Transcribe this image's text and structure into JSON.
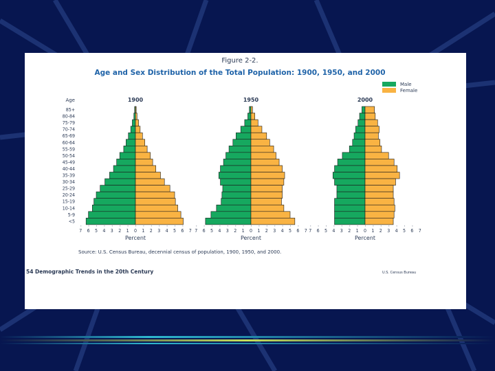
{
  "figure": {
    "number": "Figure 2-2.",
    "title": "Age and Sex Distribution of the Total Population:  1900, 1950, and 2000",
    "source": "Source:  U.S. Census Bureau, decennial census of population, 1900, 1950, and 2000.",
    "footer_left": "54  Demographic Trends in the 20th Century",
    "footer_right": "U.S. Census Bureau"
  },
  "colors": {
    "background": "#071650",
    "male": "#16a85f",
    "female": "#f9b343",
    "title": "#1f63a8",
    "text": "#2b3a55",
    "bar_bottom_top": "#2fb8cf",
    "bar_bottom_mid": "#c6e05a"
  },
  "chart_data": {
    "type": "bar",
    "subtype": "population-pyramid",
    "age_axis_label": "Age",
    "age_groups": [
      "85+",
      "80-84",
      "75-79",
      "70-74",
      "65-69",
      "60-64",
      "55-59",
      "50-54",
      "45-49",
      "40-44",
      "35-39",
      "30-34",
      "25-29",
      "20-24",
      "15-19",
      "10-14",
      "5-9",
      "<5"
    ],
    "xlabel": "Percent",
    "xlim": [
      -7,
      7
    ],
    "x_tick_labels": [
      "7",
      "6",
      "5",
      "4",
      "3",
      "2",
      "1",
      "0",
      "1",
      "2",
      "3",
      "4",
      "5",
      "6",
      "7"
    ],
    "legend": [
      {
        "name": "Male",
        "color": "#16a85f"
      },
      {
        "name": "Female",
        "color": "#f9b343"
      }
    ],
    "legend_position": "top-right",
    "panels": [
      {
        "year": "1900",
        "male": [
          0.1,
          0.2,
          0.4,
          0.6,
          0.9,
          1.2,
          1.5,
          2.0,
          2.4,
          2.8,
          3.3,
          3.9,
          4.5,
          5.0,
          5.3,
          5.5,
          6.0,
          6.3
        ],
        "female": [
          0.1,
          0.2,
          0.4,
          0.6,
          0.9,
          1.2,
          1.5,
          1.9,
          2.2,
          2.6,
          3.2,
          3.7,
          4.4,
          5.0,
          5.1,
          5.4,
          5.8,
          6.1
        ]
      },
      {
        "year": "1950",
        "male": [
          0.2,
          0.4,
          0.8,
          1.3,
          1.9,
          2.3,
          2.8,
          3.2,
          3.5,
          3.9,
          4.1,
          3.9,
          3.6,
          3.7,
          3.8,
          4.4,
          5.1,
          5.8
        ],
        "female": [
          0.2,
          0.5,
          0.9,
          1.4,
          2.0,
          2.4,
          2.9,
          3.2,
          3.6,
          4.0,
          4.3,
          4.2,
          4.0,
          4.0,
          3.9,
          4.2,
          5.0,
          5.6
        ]
      },
      {
        "year": "2000",
        "male": [
          0.4,
          0.7,
          0.9,
          1.2,
          1.4,
          1.6,
          2.0,
          2.9,
          3.5,
          3.9,
          4.1,
          3.9,
          3.6,
          3.6,
          3.9,
          3.9,
          3.9,
          3.9
        ],
        "female": [
          1.2,
          1.3,
          1.6,
          1.8,
          1.7,
          1.9,
          2.1,
          3.0,
          3.7,
          4.1,
          4.4,
          3.9,
          3.6,
          3.6,
          3.7,
          3.8,
          3.7,
          3.6
        ]
      }
    ]
  }
}
